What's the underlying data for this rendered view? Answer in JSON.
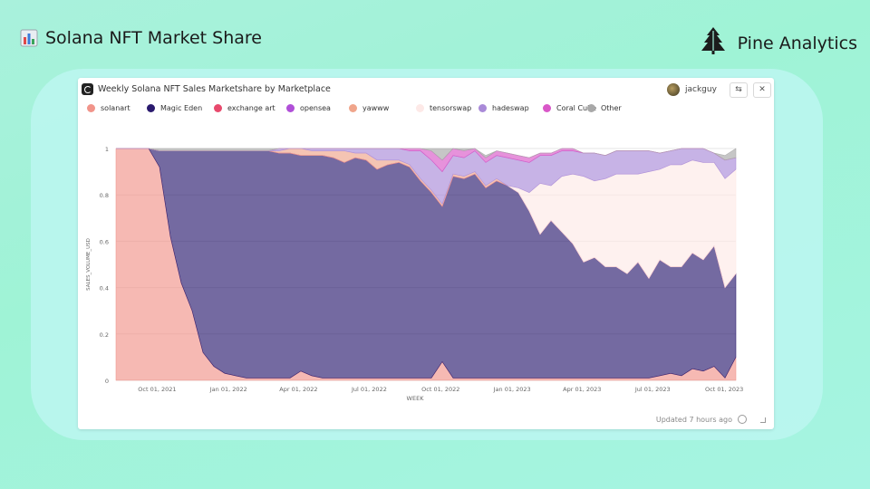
{
  "slide": {
    "title": "Solana NFT Market Share",
    "title_icon": "bar-chart-emoji-icon",
    "brand": "Pine Analytics",
    "brand_icon": "pine-tree-icon"
  },
  "card": {
    "title": "Weekly Solana NFT Sales Marketshare by Marketplace",
    "user": "jackguy",
    "swap_icon": "swap-icon",
    "close_icon": "close-icon",
    "swap_label": "⇆",
    "close_label": "✕",
    "updated": "Updated 7 hours ago"
  },
  "chart_data": {
    "type": "area",
    "stacked": true,
    "normalized": true,
    "xlabel": "WEEK",
    "ylabel": "SALES_VOLUME_USD",
    "ylim": [
      0,
      1
    ],
    "yticks": [
      "0",
      "0.2",
      "0.4",
      "0.6",
      "0.8",
      "1"
    ],
    "xticks": [
      "Oct 01, 2021",
      "Jan 01, 2022",
      "Apr 01, 2022",
      "Jul 01, 2022",
      "Oct 01, 2022",
      "Jan 01, 2023",
      "Apr 01, 2023",
      "Jul 01, 2023",
      "Oct 01, 2023"
    ],
    "x_start": "2021-08-09",
    "x_step_days": 14,
    "series": [
      {
        "name": "solanart",
        "color": "#f1948a",
        "values": [
          1,
          1,
          1,
          1,
          0.92,
          0.62,
          0.42,
          0.3,
          0.12,
          0.06,
          0.03,
          0.02,
          0.01,
          0.01,
          0.01,
          0.01,
          0.01,
          0.04,
          0.02,
          0.01,
          0.01,
          0.01,
          0.01,
          0.01,
          0.01,
          0.01,
          0.01,
          0.01,
          0.01,
          0.01,
          0.08,
          0.01,
          0.01,
          0.01,
          0.01,
          0.01,
          0.01,
          0.01,
          0.01,
          0.01,
          0.01,
          0.01,
          0.01,
          0.01,
          0.01,
          0.01,
          0.01,
          0.01,
          0.01,
          0.01,
          0.02,
          0.03,
          0.02,
          0.05,
          0.04,
          0.06,
          0.01,
          0.1
        ]
      },
      {
        "name": "Magic Eden",
        "color": "#2a1a6e",
        "values": [
          0,
          0,
          0,
          0,
          0.07,
          0.37,
          0.57,
          0.69,
          0.87,
          0.93,
          0.96,
          0.97,
          0.98,
          0.98,
          0.98,
          0.97,
          0.97,
          0.93,
          0.95,
          0.96,
          0.95,
          0.93,
          0.95,
          0.94,
          0.9,
          0.92,
          0.93,
          0.91,
          0.85,
          0.8,
          0.67,
          0.87,
          0.86,
          0.88,
          0.82,
          0.85,
          0.83,
          0.8,
          0.72,
          0.62,
          0.68,
          0.63,
          0.58,
          0.5,
          0.52,
          0.48,
          0.48,
          0.45,
          0.5,
          0.43,
          0.5,
          0.46,
          0.47,
          0.5,
          0.48,
          0.52,
          0.39,
          0.36
        ]
      },
      {
        "name": "exchange art",
        "color": "#e84a6d",
        "values": [
          0,
          0,
          0,
          0,
          0,
          0,
          0,
          0,
          0,
          0,
          0,
          0,
          0,
          0,
          0,
          0,
          0,
          0,
          0,
          0,
          0,
          0,
          0,
          0,
          0,
          0,
          0,
          0,
          0,
          0,
          0,
          0,
          0,
          0,
          0,
          0,
          0,
          0,
          0,
          0,
          0,
          0,
          0,
          0,
          0,
          0,
          0,
          0,
          0,
          0,
          0,
          0,
          0,
          0,
          0,
          0,
          0,
          0
        ]
      },
      {
        "name": "opensea",
        "color": "#b04fd8",
        "values": [
          0,
          0,
          0,
          0,
          0,
          0,
          0,
          0,
          0,
          0,
          0,
          0,
          0,
          0,
          0,
          0,
          0,
          0,
          0,
          0,
          0,
          0,
          0,
          0,
          0,
          0,
          0,
          0,
          0,
          0,
          0,
          0,
          0,
          0,
          0,
          0,
          0,
          0,
          0,
          0,
          0,
          0,
          0,
          0,
          0,
          0,
          0,
          0,
          0,
          0,
          0,
          0,
          0,
          0,
          0,
          0,
          0,
          0
        ]
      },
      {
        "name": "yawww",
        "color": "#f0a58b",
        "values": [
          0,
          0,
          0,
          0,
          0,
          0,
          0,
          0,
          0,
          0,
          0,
          0,
          0,
          0,
          0,
          0.01,
          0.02,
          0.03,
          0.02,
          0.02,
          0.03,
          0.05,
          0.02,
          0.03,
          0.04,
          0.02,
          0.01,
          0.01,
          0.01,
          0.01,
          0.01,
          0.01,
          0.01,
          0.01,
          0.01,
          0.01,
          0,
          0,
          0,
          0,
          0,
          0,
          0,
          0,
          0,
          0,
          0,
          0,
          0,
          0,
          0,
          0,
          0,
          0,
          0,
          0,
          0,
          0
        ]
      },
      {
        "name": "tensorswap",
        "color": "#fde9e7",
        "values": [
          0,
          0,
          0,
          0,
          0,
          0,
          0,
          0,
          0,
          0,
          0,
          0,
          0,
          0,
          0,
          0,
          0,
          0,
          0,
          0,
          0,
          0,
          0,
          0,
          0,
          0,
          0,
          0,
          0,
          0,
          0,
          0,
          0,
          0,
          0,
          0,
          0,
          0.02,
          0.08,
          0.22,
          0.15,
          0.24,
          0.3,
          0.37,
          0.33,
          0.38,
          0.4,
          0.43,
          0.38,
          0.46,
          0.39,
          0.44,
          0.44,
          0.4,
          0.42,
          0.36,
          0.47,
          0.45
        ]
      },
      {
        "name": "hadeswap",
        "color": "#a98ad8",
        "values": [
          0,
          0,
          0,
          0,
          0,
          0,
          0,
          0,
          0,
          0,
          0,
          0,
          0,
          0,
          0,
          0.01,
          0.02,
          0.03,
          0.03,
          0.02,
          0.02,
          0.02,
          0.03,
          0.03,
          0.05,
          0.06,
          0.05,
          0.06,
          0.12,
          0.13,
          0.14,
          0.08,
          0.08,
          0.09,
          0.1,
          0.1,
          0.12,
          0.12,
          0.13,
          0.12,
          0.13,
          0.11,
          0.1,
          0.1,
          0.12,
          0.1,
          0.1,
          0.1,
          0.1,
          0.09,
          0.07,
          0.06,
          0.07,
          0.05,
          0.06,
          0.04,
          0.08,
          0.05
        ]
      },
      {
        "name": "Coral Cube",
        "color": "#d957c8",
        "values": [
          0,
          0,
          0,
          0,
          0,
          0,
          0,
          0,
          0,
          0,
          0,
          0,
          0,
          0,
          0,
          0,
          0,
          0,
          0,
          0,
          0,
          0,
          0,
          0,
          0.01,
          0.01,
          0.01,
          0.02,
          0.02,
          0.04,
          0.05,
          0.03,
          0.03,
          0.03,
          0.02,
          0.02,
          0.02,
          0.02,
          0.02,
          0.01,
          0.01,
          0.01,
          0.01,
          0,
          0,
          0,
          0,
          0,
          0,
          0,
          0,
          0,
          0,
          0,
          0,
          0,
          0,
          0
        ]
      },
      {
        "name": "Other",
        "color": "#a8a8a8",
        "values": [
          0,
          0,
          0,
          0,
          0.01,
          0.01,
          0.01,
          0.01,
          0.01,
          0.01,
          0.01,
          0.01,
          0.01,
          0.01,
          0.01,
          0,
          0,
          0.01,
          0,
          0,
          0,
          0,
          0,
          0,
          0.01,
          0.01,
          0.03,
          0.01,
          0.01,
          0.02,
          0.07,
          0.01,
          0.01,
          0.01,
          0.01,
          0,
          0,
          0,
          0,
          0,
          0,
          0,
          0,
          0,
          0,
          0,
          0,
          0,
          0,
          0,
          0,
          0,
          0,
          0,
          0,
          0,
          0.02,
          0.04
        ]
      }
    ]
  }
}
